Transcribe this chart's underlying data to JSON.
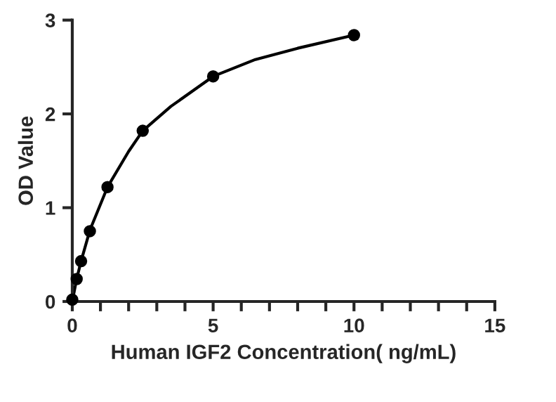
{
  "chart_data": {
    "type": "scatter",
    "xlabel": "Human IGF2 Concentration( ng/mL)",
    "ylabel": "OD Value",
    "series": [
      {
        "color": "#000000",
        "marker": "circle",
        "x": [
          0,
          0.156,
          0.3125,
          0.625,
          1.25,
          2.5,
          5,
          10
        ],
        "values": [
          0.02,
          0.24,
          0.43,
          0.75,
          1.22,
          1.82,
          2.4,
          2.84
        ]
      },
      {
        "type": "line",
        "color": "#000000",
        "marker": "none",
        "x": [
          0,
          0.156,
          0.3125,
          0.625,
          1.25,
          2,
          2.5,
          3.5,
          5,
          6.5,
          8,
          10
        ],
        "values": [
          0.0,
          0.24,
          0.43,
          0.76,
          1.22,
          1.6,
          1.82,
          2.08,
          2.4,
          2.58,
          2.7,
          2.84
        ]
      }
    ],
    "xlim": [
      0,
      15
    ],
    "ylim": [
      0,
      3
    ],
    "xticks": [
      0,
      {
        "value": 1,
        "label": null
      },
      {
        "value": 2,
        "label": null
      },
      {
        "value": 3,
        "label": null
      },
      {
        "value": 4,
        "label": null
      },
      5,
      {
        "value": 6,
        "label": null
      },
      {
        "value": 7,
        "label": null
      },
      {
        "value": 8,
        "label": null
      },
      {
        "value": 9,
        "label": null
      },
      10,
      {
        "value": 11,
        "label": null
      },
      {
        "value": 12,
        "label": null
      },
      {
        "value": 13,
        "label": null
      },
      {
        "value": 14,
        "label": null
      },
      15
    ],
    "yticks": [
      0,
      1,
      2,
      3
    ],
    "grid": false,
    "legend": false
  }
}
